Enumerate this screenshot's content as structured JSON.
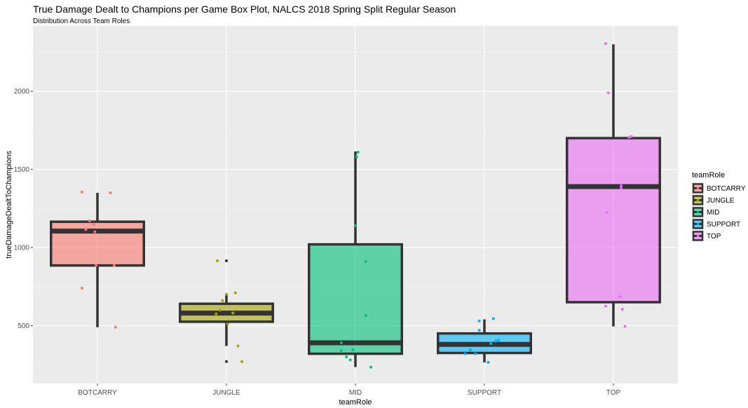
{
  "title": "True Damage Dealt to Champions per Game Box Plot, NALCS 2018 Spring Split Regular Season",
  "subtitle": "Distribution Across Team Roles",
  "chart_data": {
    "type": "box",
    "title": "True Damage Dealt to Champions per Game Box Plot, NALCS 2018 Spring Split Regular Season",
    "subtitle": "Distribution Across Team Roles",
    "xlabel": "teamRole",
    "ylabel": "trueDamageDealtToChampions",
    "ylim": [
      150,
      2400
    ],
    "yticks": [
      500,
      1000,
      1500,
      2000
    ],
    "grid": true,
    "legend_title": "teamRole",
    "legend_position": "right",
    "categories": [
      "BOTCARRY",
      "JUNGLE",
      "MID",
      "SUPPORT",
      "TOP"
    ],
    "series": [
      {
        "name": "BOTCARRY",
        "color": "#F8766D",
        "min": 490,
        "q1": 885,
        "median": 1105,
        "q3": 1165,
        "max": 1350,
        "outliers": [],
        "points": [
          {
            "dx": -0.12,
            "y": 1355
          },
          {
            "dx": 0.1,
            "y": 1350
          },
          {
            "dx": -0.06,
            "y": 1170
          },
          {
            "dx": -0.03,
            "y": 1150
          },
          {
            "dx": -0.09,
            "y": 1115
          },
          {
            "dx": -0.02,
            "y": 1100
          },
          {
            "dx": -0.01,
            "y": 885
          },
          {
            "dx": 0.13,
            "y": 885
          },
          {
            "dx": -0.12,
            "y": 740
          },
          {
            "dx": 0.14,
            "y": 490
          }
        ]
      },
      {
        "name": "JUNGLE",
        "color": "#A3A500",
        "min": 370,
        "q1": 525,
        "median": 580,
        "q3": 640,
        "max": 700,
        "outliers": [
          915,
          270
        ],
        "points": [
          {
            "dx": -0.07,
            "y": 915
          },
          {
            "dx": 0.07,
            "y": 710
          },
          {
            "dx": 0.0,
            "y": 700
          },
          {
            "dx": -0.03,
            "y": 660
          },
          {
            "dx": -0.05,
            "y": 600
          },
          {
            "dx": -0.08,
            "y": 575
          },
          {
            "dx": 0.05,
            "y": 580
          },
          {
            "dx": 0.01,
            "y": 510
          },
          {
            "dx": 0.09,
            "y": 370
          },
          {
            "dx": 0.12,
            "y": 270
          }
        ]
      },
      {
        "name": "MID",
        "color": "#00BF7D",
        "min": 235,
        "q1": 320,
        "median": 390,
        "q3": 1020,
        "max": 1615,
        "outliers": [],
        "points": [
          {
            "dx": 0.02,
            "y": 1610
          },
          {
            "dx": 0.01,
            "y": 1580
          },
          {
            "dx": 0.0,
            "y": 1140
          },
          {
            "dx": 0.08,
            "y": 910
          },
          {
            "dx": 0.08,
            "y": 565
          },
          {
            "dx": -0.11,
            "y": 390
          },
          {
            "dx": -0.11,
            "y": 340
          },
          {
            "dx": -0.02,
            "y": 345
          },
          {
            "dx": -0.07,
            "y": 300
          },
          {
            "dx": -0.04,
            "y": 280
          },
          {
            "dx": 0.12,
            "y": 235
          }
        ]
      },
      {
        "name": "SUPPORT",
        "color": "#00B0F6",
        "min": 265,
        "q1": 325,
        "median": 380,
        "q3": 450,
        "max": 540,
        "outliers": [],
        "points": [
          {
            "dx": 0.07,
            "y": 545
          },
          {
            "dx": -0.04,
            "y": 530
          },
          {
            "dx": -0.04,
            "y": 470
          },
          {
            "dx": 0.11,
            "y": 405
          },
          {
            "dx": 0.09,
            "y": 400
          },
          {
            "dx": 0.05,
            "y": 385
          },
          {
            "dx": -0.11,
            "y": 345
          },
          {
            "dx": -0.15,
            "y": 320
          },
          {
            "dx": -0.07,
            "y": 320
          },
          {
            "dx": 0.03,
            "y": 265
          }
        ]
      },
      {
        "name": "TOP",
        "color": "#E76BF3",
        "min": 495,
        "q1": 650,
        "median": 1390,
        "q3": 1700,
        "max": 2300,
        "outliers": [],
        "points": [
          {
            "dx": -0.06,
            "y": 2305
          },
          {
            "dx": -0.04,
            "y": 1990
          },
          {
            "dx": 0.14,
            "y": 1710
          },
          {
            "dx": 0.12,
            "y": 1705
          },
          {
            "dx": 0.06,
            "y": 1395
          },
          {
            "dx": 0.06,
            "y": 1380
          },
          {
            "dx": -0.05,
            "y": 1225
          },
          {
            "dx": 0.05,
            "y": 685
          },
          {
            "dx": -0.06,
            "y": 625
          },
          {
            "dx": 0.07,
            "y": 605
          },
          {
            "dx": 0.09,
            "y": 495
          }
        ]
      }
    ]
  }
}
